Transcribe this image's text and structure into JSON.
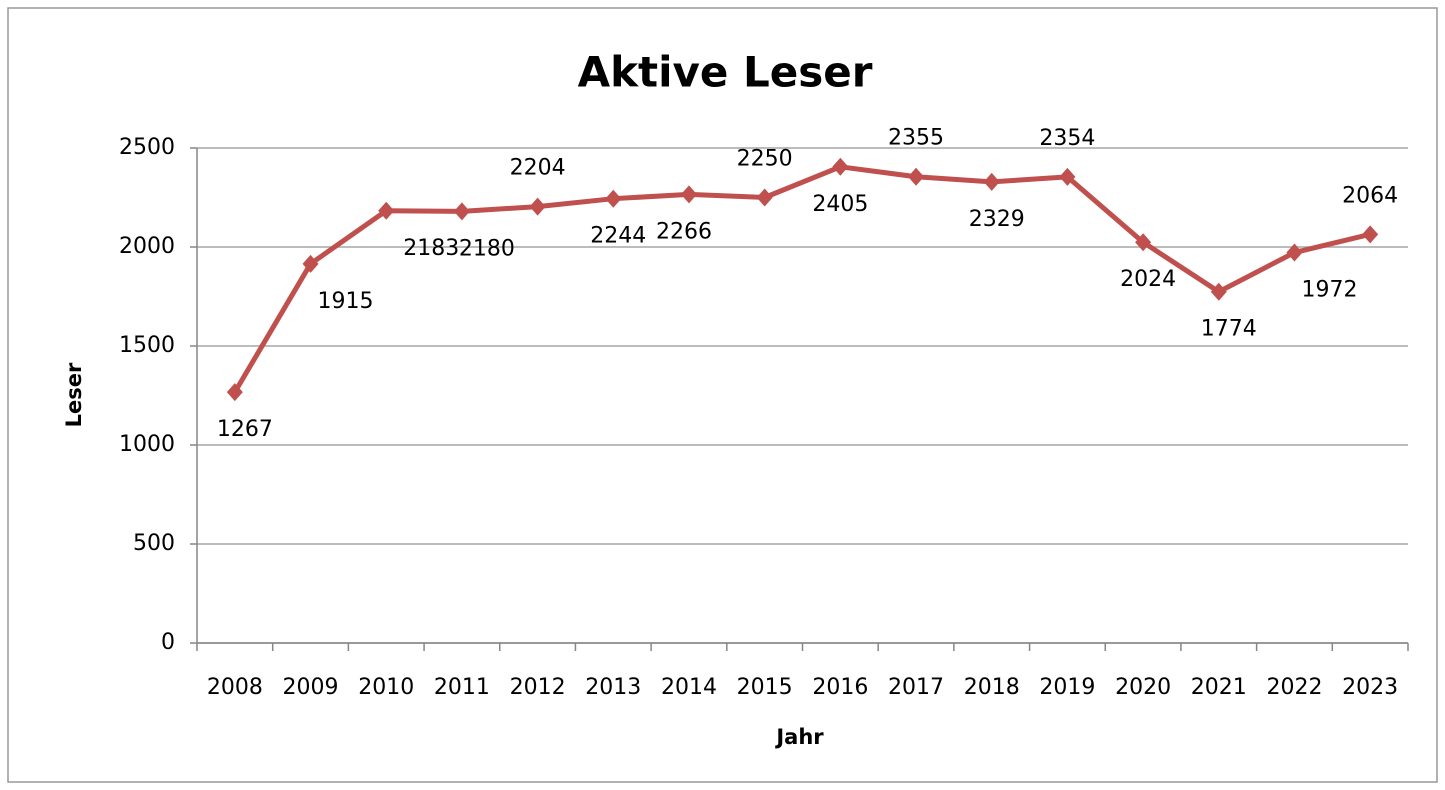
{
  "chart_data": {
    "type": "line",
    "title": "Aktive Leser",
    "x_label": "Jahr",
    "y_label": "Leser",
    "categories": [
      "2008",
      "2009",
      "2010",
      "2011",
      "2012",
      "2013",
      "2014",
      "2015",
      "2016",
      "2017",
      "2018",
      "2019",
      "2020",
      "2021",
      "2022",
      "2023"
    ],
    "series": [
      {
        "name": "Leser",
        "color": "#c0504d",
        "values": [
          1267,
          1915,
          2183,
          2180,
          2204,
          2244,
          2266,
          2250,
          2405,
          2355,
          2329,
          2354,
          2024,
          1774,
          1972,
          2064
        ]
      }
    ],
    "ylim": [
      0,
      2500
    ],
    "yticks": [
      0,
      500,
      1000,
      1500,
      2000,
      2500
    ],
    "grid": true
  }
}
